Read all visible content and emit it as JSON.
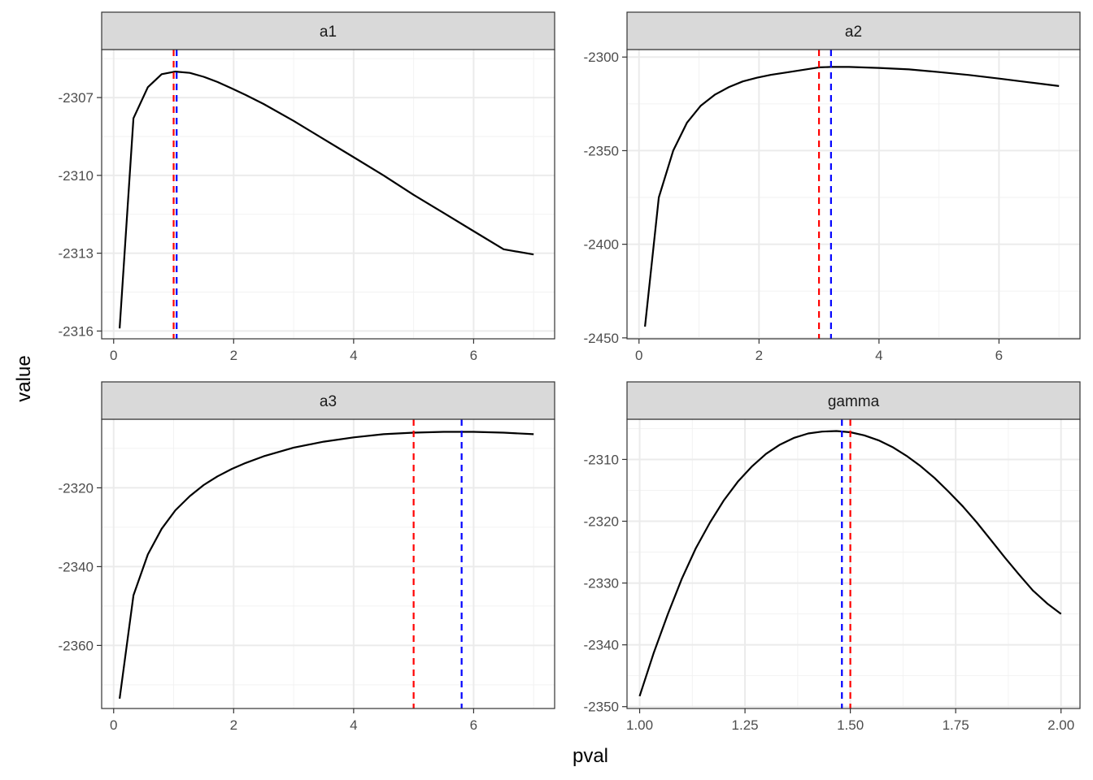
{
  "axis_titles": {
    "x": "pval",
    "y": "value"
  },
  "colors": {
    "estimate_line": "#ff0000",
    "true_line": "#0000ff",
    "curve": "#000000",
    "strip_fill": "#d9d9d9",
    "grid_major": "#ebebeb"
  },
  "chart_data": [
    {
      "type": "line",
      "facet": "a1",
      "xlim": [
        -0.2,
        7.35
      ],
      "ylim": [
        -2316.3,
        -2305.15
      ],
      "x_ticks": [
        0,
        2,
        4,
        6
      ],
      "y_ticks": [
        -2307,
        -2310,
        -2313,
        -2316
      ],
      "vlines": {
        "red": 1.0,
        "blue": 1.05
      },
      "series": [
        {
          "x": [
            0.1,
            0.33,
            0.57,
            0.8,
            1.03,
            1.27,
            1.5,
            1.73,
            1.97,
            2.2,
            2.5,
            3.0,
            3.5,
            4.0,
            4.5,
            5.0,
            5.5,
            6.0,
            6.5,
            7.0
          ],
          "y": [
            -2315.9,
            -2307.8,
            -2306.6,
            -2306.1,
            -2306.0,
            -2306.05,
            -2306.2,
            -2306.4,
            -2306.65,
            -2306.9,
            -2307.25,
            -2307.9,
            -2308.6,
            -2309.3,
            -2310.0,
            -2310.75,
            -2311.45,
            -2312.15,
            -2312.85,
            -2313.05
          ]
        }
      ]
    },
    {
      "type": "line",
      "facet": "a2",
      "xlim": [
        -0.2,
        7.35
      ],
      "ylim": [
        -2450.5,
        -2296.0
      ],
      "x_ticks": [
        0,
        2,
        4,
        6
      ],
      "y_ticks": [
        -2300,
        -2350,
        -2400,
        -2450
      ],
      "vlines": {
        "red": 3.0,
        "blue": 3.2
      },
      "series": [
        {
          "x": [
            0.1,
            0.33,
            0.57,
            0.8,
            1.03,
            1.27,
            1.5,
            1.73,
            1.97,
            2.2,
            2.5,
            3.0,
            3.2,
            3.5,
            4.0,
            4.5,
            5.0,
            5.5,
            6.0,
            6.5,
            7.0
          ],
          "y": [
            -2444,
            -2375,
            -2350,
            -2335,
            -2326,
            -2320,
            -2316,
            -2313,
            -2311,
            -2309.5,
            -2308,
            -2305.5,
            -2305.3,
            -2305.3,
            -2305.8,
            -2306.6,
            -2308,
            -2309.6,
            -2311.5,
            -2313.5,
            -2315.5
          ]
        }
      ]
    },
    {
      "type": "line",
      "facet": "a3",
      "xlim": [
        -0.2,
        7.35
      ],
      "ylim": [
        -2376.0,
        -2302.6
      ],
      "x_ticks": [
        0,
        2,
        4,
        6
      ],
      "y_ticks": [
        -2320,
        -2340,
        -2360
      ],
      "vlines": {
        "red": 5.0,
        "blue": 5.8
      },
      "series": [
        {
          "x": [
            0.1,
            0.33,
            0.57,
            0.8,
            1.03,
            1.27,
            1.5,
            1.73,
            1.97,
            2.2,
            2.5,
            3.0,
            3.5,
            4.0,
            4.5,
            5.0,
            5.5,
            5.8,
            6.0,
            6.5,
            7.0
          ],
          "y": [
            -2373.5,
            -2347.3,
            -2336.9,
            -2330.4,
            -2325.7,
            -2322.1,
            -2319.3,
            -2317.1,
            -2315.2,
            -2313.7,
            -2312.0,
            -2309.8,
            -2308.3,
            -2307.2,
            -2306.4,
            -2306.0,
            -2305.8,
            -2305.8,
            -2305.8,
            -2306.0,
            -2306.4
          ]
        }
      ]
    },
    {
      "type": "line",
      "facet": "gamma",
      "xlim": [
        0.97,
        2.045
      ],
      "ylim": [
        -2350.3,
        -2303.5
      ],
      "x_ticks": [
        1.0,
        1.25,
        1.5,
        1.75,
        2.0
      ],
      "x_tick_labels": [
        "1.00",
        "1.25",
        "1.50",
        "1.75",
        "2.00"
      ],
      "y_ticks": [
        -2310,
        -2320,
        -2330,
        -2340,
        -2350
      ],
      "vlines": {
        "red": 1.5,
        "blue": 1.48
      },
      "series": [
        {
          "x": [
            1.0,
            1.033,
            1.067,
            1.1,
            1.133,
            1.167,
            1.2,
            1.233,
            1.267,
            1.3,
            1.333,
            1.367,
            1.4,
            1.433,
            1.467,
            1.5,
            1.533,
            1.567,
            1.6,
            1.633,
            1.667,
            1.7,
            1.733,
            1.767,
            1.8,
            1.833,
            1.867,
            1.9,
            1.933,
            1.967,
            2.0
          ],
          "y": [
            -2348.3,
            -2341.4,
            -2335.0,
            -2329.3,
            -2324.4,
            -2320.2,
            -2316.6,
            -2313.6,
            -2311.1,
            -2309.1,
            -2307.6,
            -2306.5,
            -2305.8,
            -2305.5,
            -2305.4,
            -2305.6,
            -2306.1,
            -2306.9,
            -2308.0,
            -2309.4,
            -2311.1,
            -2313.0,
            -2315.2,
            -2317.6,
            -2320.2,
            -2323.0,
            -2325.9,
            -2328.6,
            -2331.2,
            -2333.3,
            -2335.0
          ]
        }
      ]
    }
  ]
}
